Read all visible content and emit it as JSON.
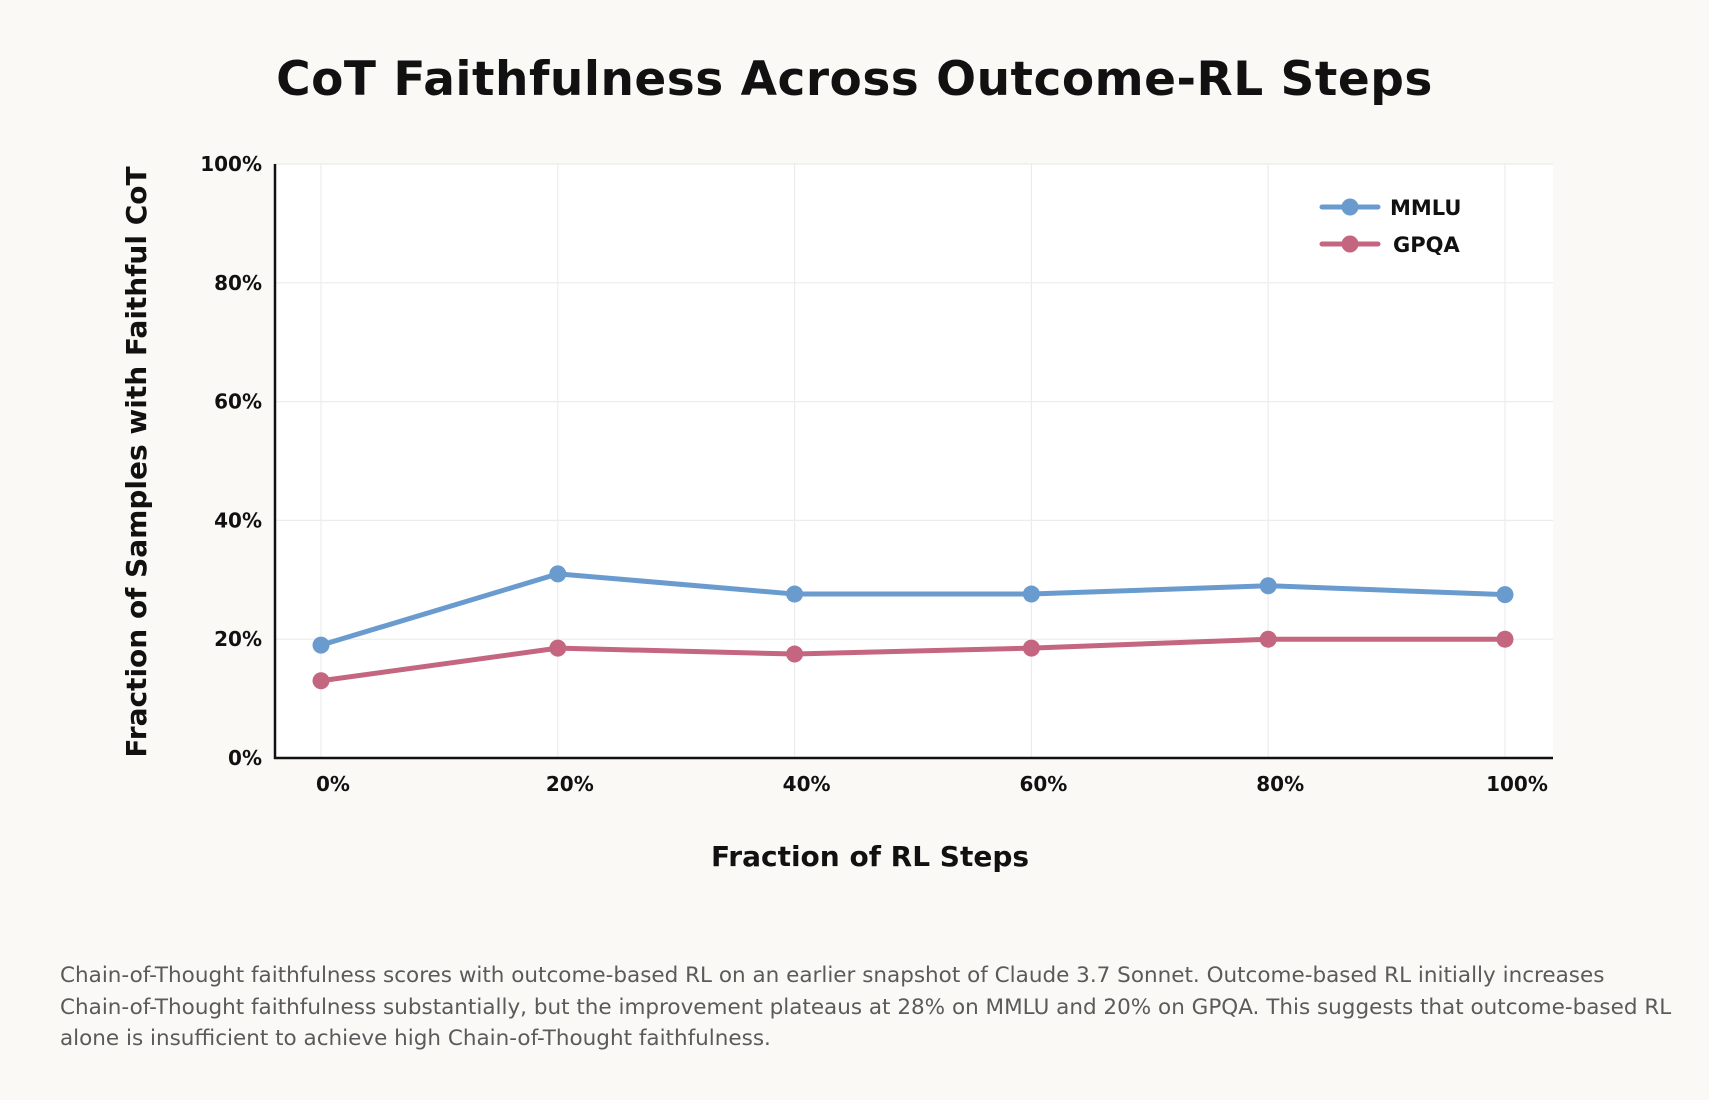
{
  "chart_data": {
    "type": "line",
    "title": "CoT Faithfulness Across Outcome-RL Steps",
    "xlabel": "Fraction of RL Steps",
    "ylabel": "Fraction of Samples with Faithful CoT",
    "x": [
      0,
      20,
      40,
      60,
      80,
      100
    ],
    "x_tick_labels": [
      "0%",
      "20%",
      "40%",
      "60%",
      "80%",
      "100%"
    ],
    "y_tick_labels": [
      "0%",
      "20%",
      "40%",
      "60%",
      "80%",
      "100%"
    ],
    "y_ticks": [
      0,
      20,
      40,
      60,
      80,
      100
    ],
    "xlim": [
      -4,
      105
    ],
    "ylim": [
      0,
      100
    ],
    "grid": true,
    "legend": "top-right",
    "series": [
      {
        "name": "MMLU",
        "color": "#6a9bcf",
        "values": [
          19,
          31,
          27.6,
          27.6,
          29,
          27.5
        ]
      },
      {
        "name": "GPQA",
        "color": "#c4667f",
        "values": [
          13,
          18.5,
          17.5,
          18.5,
          20,
          20
        ]
      }
    ]
  },
  "caption": "Chain-of-Thought faithfulness scores with outcome-based RL on an earlier snapshot of Claude 3.7 Sonnet. Outcome-based RL initially increases Chain-of-Thought faithfulness substantially, but the improvement plateaus at 28% on MMLU and 20% on GPQA. This suggests that outcome-based RL alone is insufficient to achieve high Chain-of-Thought faithfulness."
}
